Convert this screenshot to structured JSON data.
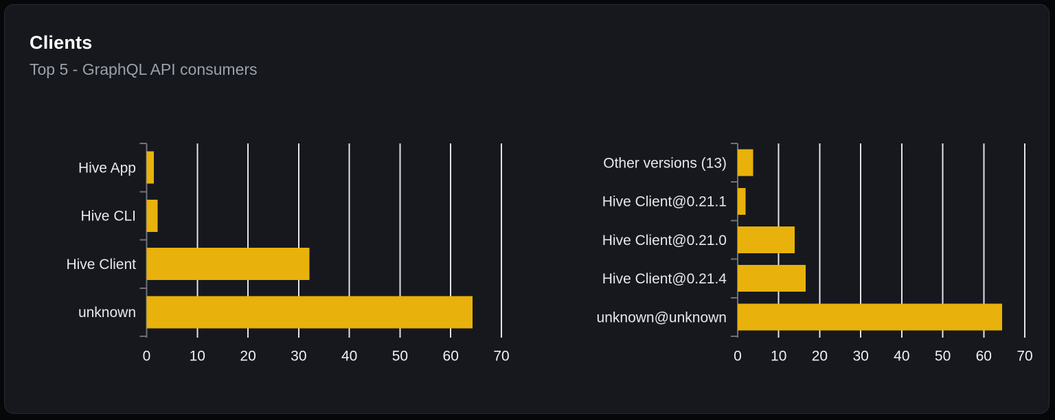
{
  "header": {
    "title": "Clients",
    "subtitle": "Top 5 - GraphQL API consumers"
  },
  "colors": {
    "background": "#060709",
    "card_background": "#16181d",
    "card_border": "#262a31",
    "title": "#ffffff",
    "subtitle": "#9aa1ab",
    "bar": "#e9b10b",
    "gridline": "#e3e5ea",
    "axis": "#6f7278",
    "tick_label": "#eef0f3",
    "category_label": "#e6e8eb"
  },
  "chart_data": [
    {
      "type": "bar",
      "orientation": "horizontal",
      "title": "",
      "categories": [
        "Hive App",
        "Hive CLI",
        "Hive Client",
        "unknown"
      ],
      "values": [
        1.4,
        2.2,
        32.1,
        64.3
      ],
      "xlabel": "",
      "ylabel": "",
      "xlim": [
        0,
        70
      ],
      "xticks": [
        0,
        10,
        20,
        30,
        40,
        50,
        60,
        70
      ],
      "grid": true,
      "legend": false
    },
    {
      "type": "bar",
      "orientation": "horizontal",
      "title": "",
      "categories": [
        "Other versions (13)",
        "Hive Client@0.21.1",
        "Hive Client@0.21.0",
        "Hive Client@0.21.4",
        "unknown@unknown"
      ],
      "values": [
        3.8,
        1.9,
        13.9,
        16.6,
        64.5
      ],
      "xlabel": "",
      "ylabel": "",
      "xlim": [
        0,
        70
      ],
      "xticks": [
        0,
        10,
        20,
        30,
        40,
        50,
        60,
        70
      ],
      "grid": true,
      "legend": false
    }
  ]
}
